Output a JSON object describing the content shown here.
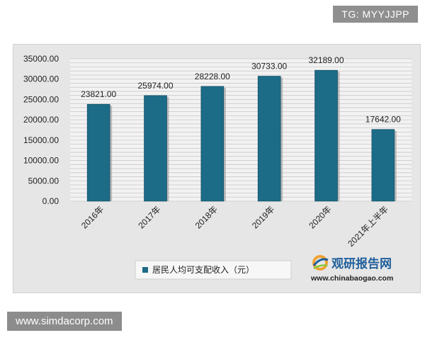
{
  "watermark_top": "TG: MYYJJPP",
  "watermark_bottom": "www.simdacorp.com",
  "logo": {
    "name": "观研报告网",
    "url": "www.chinabaogao.com",
    "colors": {
      "blue": "#1f5f9a",
      "orange": "#f0a132",
      "green": "#8cc63f"
    }
  },
  "colors": {
    "bar": "#1c6b87",
    "bar_edge": "#10495e",
    "grid": "#c8c8c8",
    "plot_bg": "#f2f2f2",
    "panel_bg": "#e6e6e6",
    "text": "#222222"
  },
  "chart_data": {
    "type": "bar",
    "categories": [
      "2016年",
      "2017年",
      "2018年",
      "2019年",
      "2020年",
      "2021年上半年"
    ],
    "series": [
      {
        "name": "居民人均可支配收入（元）",
        "values": [
          23821,
          25974,
          28228,
          30733,
          32189,
          17642
        ],
        "labels": [
          "23821.00",
          "25974.00",
          "28228.00",
          "30733.00",
          "32189.00",
          "17642.00"
        ]
      }
    ],
    "ylim": [
      0,
      35000
    ],
    "yticks": [
      0,
      5000,
      10000,
      15000,
      20000,
      25000,
      30000,
      35000
    ],
    "ytick_labels": [
      "0.00",
      "5000.00",
      "10000.00",
      "15000.00",
      "20000.00",
      "25000.00",
      "30000.00",
      "35000.00"
    ],
    "grid": true,
    "legend_position": "bottom"
  }
}
